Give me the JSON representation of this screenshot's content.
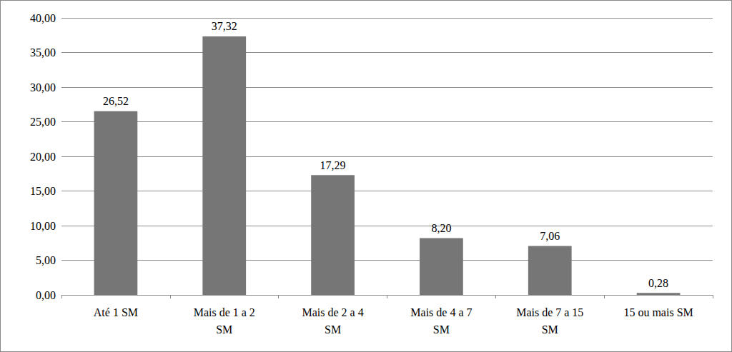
{
  "chart_data": {
    "type": "bar",
    "categories": [
      "Até 1 SM",
      "Mais de 1 a 2\nSM",
      "Mais de 2 a 4\nSM",
      "Mais de 4 a 7\nSM",
      "Mais de 7 a 15\nSM",
      "15 ou mais SM"
    ],
    "values": [
      26.52,
      37.32,
      17.29,
      8.2,
      7.06,
      0.28
    ],
    "value_labels": [
      "26,52",
      "37,32",
      "17,29",
      "8,20",
      "7,06",
      "0,28"
    ],
    "color": "#767676",
    "ylim": [
      0,
      40
    ],
    "yticks": [
      {
        "value": 0,
        "label": "0,00"
      },
      {
        "value": 5,
        "label": "5,00"
      },
      {
        "value": 10,
        "label": "10,00"
      },
      {
        "value": 15,
        "label": "15,00"
      },
      {
        "value": 20,
        "label": "20,00"
      },
      {
        "value": 25,
        "label": "25,00"
      },
      {
        "value": 30,
        "label": "30,00"
      },
      {
        "value": 35,
        "label": "35,00"
      },
      {
        "value": 40,
        "label": "40,00"
      }
    ],
    "grid": true,
    "data_labels": true
  }
}
